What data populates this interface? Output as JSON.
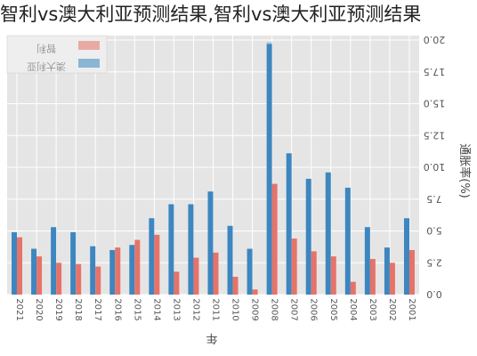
{
  "chart_data": {
    "type": "bar",
    "title": "智利vs澳大利亚预测结果,智利vs澳大利亚预测结果",
    "xlabel": "年",
    "ylabel": "通胀率(%)",
    "orientation": "mirrored",
    "categories": [
      "2021",
      "2020",
      "2019",
      "2018",
      "2017",
      "2016",
      "2015",
      "2014",
      "2013",
      "2012",
      "2011",
      "2010",
      "2009",
      "2008",
      "2007",
      "2006",
      "2005",
      "2004",
      "2003",
      "2002",
      "2001"
    ],
    "series": [
      {
        "name": "智利",
        "color": "#e5736a",
        "values": [
          4.5,
          3.0,
          2.5,
          2.4,
          2.2,
          3.7,
          4.3,
          4.7,
          1.8,
          2.9,
          3.3,
          1.4,
          0.4,
          8.7,
          4.4,
          3.4,
          3.0,
          1.0,
          2.8,
          2.5,
          3.5
        ]
      },
      {
        "name": "澳大利亚",
        "color": "#3d86bf",
        "values": [
          4.9,
          3.6,
          5.3,
          4.9,
          3.8,
          3.5,
          3.9,
          6.0,
          7.1,
          7.1,
          8.1,
          5.4,
          3.6,
          19.7,
          11.1,
          9.1,
          9.6,
          8.4,
          5.3,
          3.7,
          6.0
        ]
      }
    ],
    "yticks": [
      "0.0",
      "2.5",
      "5.0",
      "7.5",
      "10.0",
      "12.5",
      "15.0",
      "17.5",
      "20.0"
    ],
    "ylim": [
      0,
      20
    ],
    "grid": true,
    "legend_position": "top-left"
  }
}
